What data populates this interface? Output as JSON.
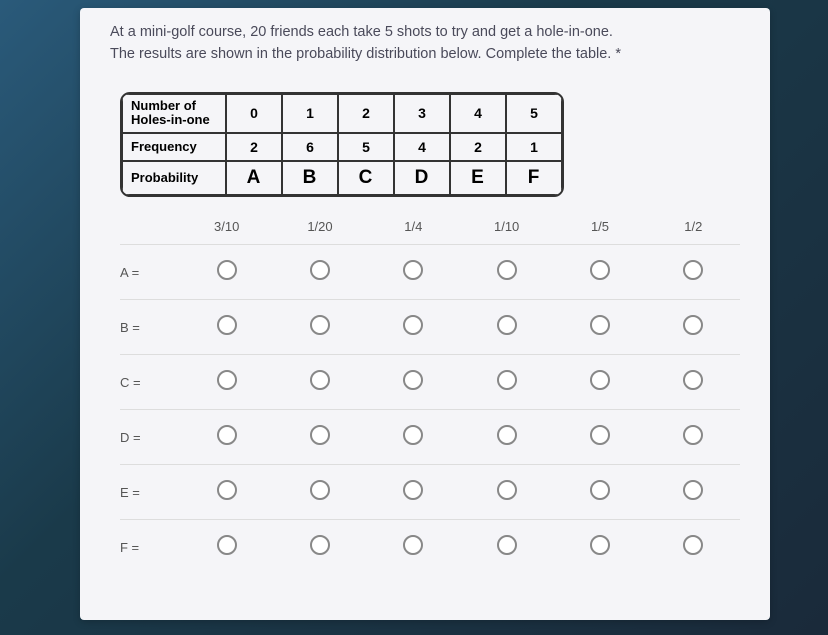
{
  "prompt": {
    "line1": "At a mini-golf course, 20 friends each take 5 shots to try and get a hole-in-one.",
    "line2": "The results are shown in the probability distribution below. Complete the table. *"
  },
  "table": {
    "row_headers": [
      "Number of\nHoles-in-one",
      "Frequency",
      "Probability"
    ],
    "holes": [
      "0",
      "1",
      "2",
      "3",
      "4",
      "5"
    ],
    "frequency": [
      "2",
      "6",
      "5",
      "4",
      "2",
      "1"
    ],
    "probability": [
      "A",
      "B",
      "C",
      "D",
      "E",
      "F"
    ]
  },
  "grid": {
    "column_headers": [
      "3/10",
      "1/20",
      "1/4",
      "1/10",
      "1/5",
      "1/2"
    ],
    "row_labels": [
      "A =",
      "B =",
      "C =",
      "D =",
      "E =",
      "F ="
    ]
  }
}
